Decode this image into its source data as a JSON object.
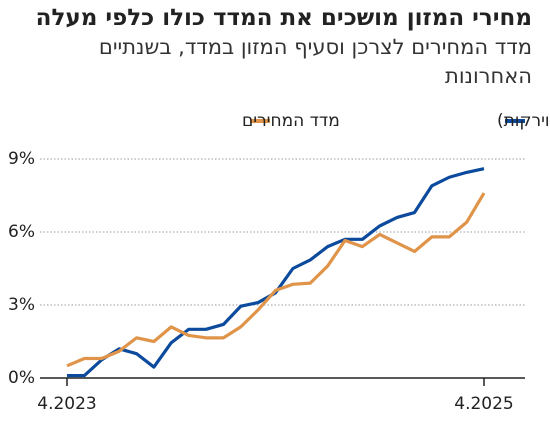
{
  "chart_data": {
    "type": "line",
    "title": "מחירי המזון מושכים את המדד כולו כלפי מעלה",
    "subtitle": "מדד המחירים לצרכן וסעיף המזון במדד, בשנתיים האחרונות",
    "categories": [
      "4.2023",
      null,
      null,
      null,
      null,
      null,
      null,
      null,
      null,
      null,
      null,
      null,
      null,
      null,
      null,
      null,
      null,
      null,
      null,
      null,
      null,
      null,
      null,
      null,
      "4.2025"
    ],
    "series": [
      {
        "name": "מזון (ללא פירות וירקות)",
        "color": "#0b4a9c",
        "values": [
          0.1,
          0.1,
          0.75,
          1.2,
          1.0,
          0.45,
          1.45,
          2.0,
          2.0,
          2.2,
          2.95,
          3.1,
          3.5,
          4.5,
          4.85,
          5.4,
          5.7,
          5.7,
          6.25,
          6.6,
          6.8,
          7.9,
          8.25,
          8.45,
          8.6
        ]
      },
      {
        "name": "מדד המחירים",
        "color": "#e0944a",
        "values": [
          0.5,
          0.8,
          0.8,
          1.1,
          1.65,
          1.5,
          2.1,
          1.75,
          1.65,
          1.65,
          2.1,
          2.8,
          3.6,
          3.85,
          3.9,
          4.6,
          5.65,
          5.4,
          5.9,
          5.55,
          5.2,
          5.8,
          5.8,
          6.4,
          7.6
        ]
      }
    ],
    "ylim": [
      0,
      9
    ],
    "yticks": [
      {
        "value": 0,
        "label": "0%"
      },
      {
        "value": 3,
        "label": "3%"
      },
      {
        "value": 6,
        "label": "6%"
      },
      {
        "value": 9,
        "label": "9%"
      }
    ],
    "grid": true
  }
}
